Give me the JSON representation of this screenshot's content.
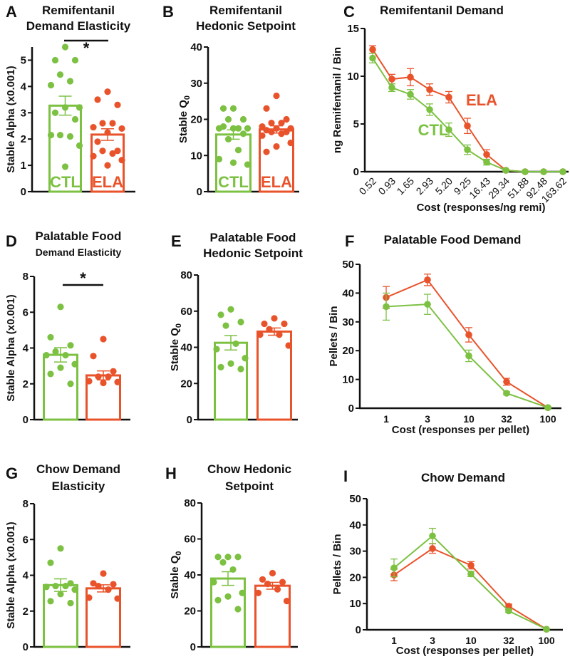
{
  "colors": {
    "CTL": "#7cc142",
    "ELA": "#e9532b",
    "axis": "#111111"
  },
  "groups": [
    "CTL",
    "ELA"
  ],
  "chart_data": [
    {
      "id": "A",
      "type": "bar",
      "letter": "A",
      "title": [
        "Remifentanil",
        "Demand Elasticity"
      ],
      "ylabel": "Stable Alpha (x0.001)",
      "yticks": [
        0,
        1,
        2,
        3,
        4,
        5
      ],
      "ylim": [
        0,
        5.5
      ],
      "group_labels_in_bars": true,
      "significance": "*",
      "series": [
        {
          "name": "CTL",
          "mean": 3.27,
          "sem": 0.36,
          "points": [
            5.5,
            5.0,
            5.0,
            4.45,
            4.2,
            4.05,
            3.2,
            3.2,
            3.0,
            2.75,
            2.15,
            2.1,
            2.15,
            1.75,
            0.95
          ]
        },
        {
          "name": "ELA",
          "mean": 2.17,
          "sem": 0.22,
          "points": [
            3.8,
            3.5,
            3.3,
            2.6,
            2.6,
            2.45,
            2.4,
            2.25,
            1.9,
            1.55,
            1.55,
            1.45,
            1.35,
            1.2,
            1.0
          ]
        }
      ]
    },
    {
      "id": "B",
      "type": "bar",
      "letter": "B",
      "title": [
        "Remifentanil",
        "Hedonic Setpoint"
      ],
      "ylabel": "Stable Q",
      "ylabel_sub": "0",
      "yticks": [
        0,
        10,
        20,
        30,
        40
      ],
      "ylim": [
        0,
        40
      ],
      "group_labels_in_bars": true,
      "series": [
        {
          "name": "CTL",
          "mean": 15.8,
          "sem": 1.3,
          "points": [
            23,
            23,
            20,
            20,
            17.5,
            17.5,
            17.5,
            17.5,
            18,
            16,
            14.5,
            11.5,
            9,
            7.5,
            8
          ]
        },
        {
          "name": "ELA",
          "mean": 17.2,
          "sem": 1.0,
          "points": [
            26.5,
            23,
            20,
            19,
            19,
            18,
            17.5,
            17.5,
            17,
            16.5,
            16.5,
            16,
            15.5,
            13.5,
            12.5,
            11
          ]
        }
      ]
    },
    {
      "id": "C",
      "type": "line",
      "letter": "C",
      "title": [
        "Remifentanil Demand"
      ],
      "ylabel": "ng Remifentanil / Bin",
      "xlabel": "Cost (responses/ng remi)",
      "yticks": [
        0,
        5,
        10,
        15
      ],
      "ylim": [
        0,
        15
      ],
      "categories": [
        "0.52",
        "0.93",
        "1.65",
        "2.93",
        "5.20",
        "9.25",
        "16.43",
        "29.34",
        "51.88",
        "92.48",
        "163.62"
      ],
      "rotated_ticks": true,
      "series": [
        {
          "name": "CTL",
          "values": [
            11.9,
            8.8,
            8.1,
            6.5,
            4.4,
            2.3,
            1.0,
            0.15,
            0,
            0,
            0
          ],
          "sem": [
            0.5,
            0.4,
            0.5,
            0.6,
            0.7,
            0.5,
            0.3,
            0.1,
            0,
            0,
            0
          ]
        },
        {
          "name": "ELA",
          "values": [
            12.8,
            9.7,
            9.9,
            8.6,
            7.8,
            4.8,
            1.8,
            0.15,
            0,
            0,
            0
          ],
          "sem": [
            0.4,
            0.5,
            0.9,
            0.6,
            0.6,
            0.8,
            0.5,
            0.1,
            0,
            0,
            0
          ]
        }
      ]
    },
    {
      "id": "D",
      "type": "bar",
      "letter": "D",
      "title": [
        "Palatable Food",
        "Demand Elasticity"
      ],
      "ylabel": "Stable Alpha (x0.001)",
      "yticks": [
        0,
        2,
        4,
        6,
        8
      ],
      "ylim": [
        0,
        8
      ],
      "significance": "*",
      "series": [
        {
          "name": "CTL",
          "mean": 3.62,
          "sem": 0.4,
          "points": [
            6.3,
            4.6,
            4.15,
            3.8,
            3.6,
            3.6,
            3.1,
            2.9,
            2.55,
            2.0
          ]
        },
        {
          "name": "ELA",
          "mean": 2.47,
          "sem": 0.25,
          "points": [
            4.5,
            3.55,
            2.7,
            2.4,
            2.4,
            2.15,
            2.1,
            2.05
          ]
        }
      ]
    },
    {
      "id": "E",
      "type": "bar",
      "letter": "E",
      "title": [
        "Palatable Food",
        "Hedonic Setpoint"
      ],
      "ylabel": "Stable Q",
      "ylabel_sub": "0",
      "yticks": [
        0,
        20,
        40,
        60,
        80
      ],
      "ylim": [
        0,
        80
      ],
      "series": [
        {
          "name": "CTL",
          "mean": 42.5,
          "sem": 4.0,
          "points": [
            61,
            58,
            54,
            52,
            42,
            39,
            34,
            31,
            29,
            28
          ]
        },
        {
          "name": "ELA",
          "mean": 48.7,
          "sem": 2.0,
          "points": [
            56,
            53,
            53,
            50,
            47,
            47,
            41
          ]
        }
      ]
    },
    {
      "id": "F",
      "type": "line",
      "letter": "F",
      "title": [
        "Palatable Food Demand"
      ],
      "ylabel": "Pellets / Bin",
      "xlabel": "Cost (responses per pellet)",
      "yticks": [
        0,
        10,
        20,
        30,
        40,
        50
      ],
      "ylim": [
        0,
        50
      ],
      "categories": [
        "1",
        "3",
        "10",
        "32",
        "100"
      ],
      "series": [
        {
          "name": "CTL",
          "values": [
            35.3,
            36.1,
            18.2,
            5.2,
            0.2
          ],
          "sem": [
            4.7,
            3.5,
            2.0,
            0.5,
            0.2
          ]
        },
        {
          "name": "ELA",
          "values": [
            38.5,
            44.6,
            25.5,
            9.2,
            0.2
          ],
          "sem": [
            3.8,
            2.0,
            2.5,
            1.2,
            0
          ]
        }
      ]
    },
    {
      "id": "G",
      "type": "bar",
      "letter": "G",
      "title": [
        "Chow Demand",
        "Elasticity"
      ],
      "ylabel": "Stable Alpha (x0.001)",
      "yticks": [
        0,
        2,
        4,
        6,
        8
      ],
      "ylim": [
        0,
        8
      ],
      "series": [
        {
          "name": "CTL",
          "mean": 3.45,
          "sem": 0.35,
          "points": [
            5.5,
            4.7,
            3.55,
            3.4,
            3.4,
            3.35,
            3.2,
            2.95,
            2.55,
            2.45
          ]
        },
        {
          "name": "ELA",
          "mean": 3.27,
          "sem": 0.2,
          "points": [
            4.1,
            3.55,
            3.5,
            3.4,
            3.2,
            2.75,
            2.7
          ]
        }
      ]
    },
    {
      "id": "H",
      "type": "bar",
      "letter": "H",
      "title": [
        "Chow Hedonic",
        "Setpoint"
      ],
      "ylabel": "Stable Q",
      "ylabel_sub": "0",
      "yticks": [
        0,
        20,
        40,
        60,
        80
      ],
      "ylim": [
        0,
        80
      ],
      "series": [
        {
          "name": "CTL",
          "mean": 38,
          "sem": 3.8,
          "points": [
            50,
            50,
            50,
            47,
            43,
            36,
            30,
            28,
            26,
            21
          ]
        },
        {
          "name": "ELA",
          "mean": 34,
          "sem": 1.9,
          "points": [
            41,
            37.5,
            36,
            35,
            32,
            30,
            25.5
          ]
        }
      ]
    },
    {
      "id": "I",
      "type": "line",
      "letter": "I",
      "title": [
        "Chow Demand"
      ],
      "ylabel": "Pellets / Bin",
      "xlabel": "Cost (responses per pellet)",
      "yticks": [
        0,
        10,
        20,
        30,
        40,
        50
      ],
      "ylim": [
        0,
        50
      ],
      "categories": [
        "1",
        "3",
        "10",
        "32",
        "100"
      ],
      "series": [
        {
          "name": "CTL",
          "values": [
            23.6,
            35.8,
            21.3,
            7.2,
            0.2
          ],
          "sem": [
            3.4,
            2.9,
            1.0,
            0.5,
            0
          ]
        },
        {
          "name": "ELA",
          "values": [
            20.9,
            31.0,
            24.6,
            9.0,
            0.2
          ],
          "sem": [
            2.2,
            1.8,
            1.4,
            0.8,
            0
          ]
        }
      ]
    }
  ]
}
